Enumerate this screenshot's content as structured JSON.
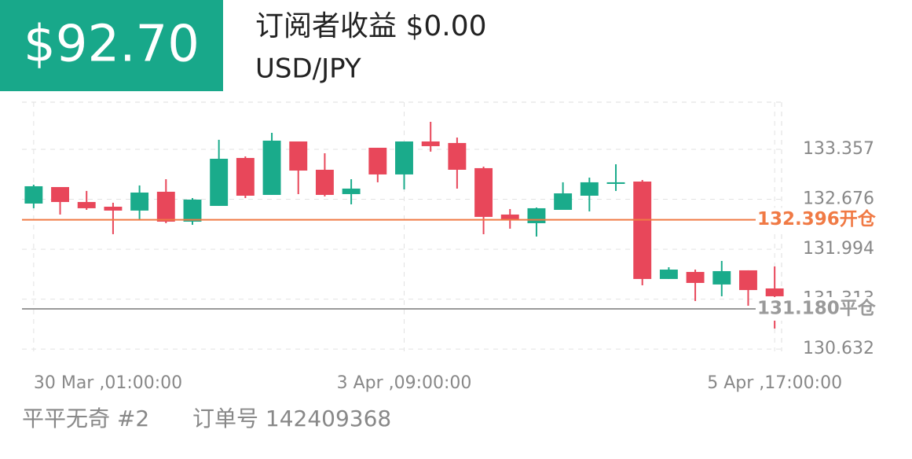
{
  "header": {
    "profit": "$92.70",
    "title": "订阅者收益 $0.00",
    "symbol": "USD/JPY"
  },
  "chart_data": {
    "type": "candlestick",
    "categories": [
      "30 Mar ,01:00:00",
      null,
      null,
      null,
      null,
      null,
      null,
      null,
      null,
      null,
      null,
      null,
      null,
      null,
      "3 Apr ,09:00:00",
      null,
      null,
      null,
      null,
      null,
      null,
      null,
      null,
      null,
      null,
      null,
      null,
      null,
      "5 Apr ,17:00:00"
    ],
    "open": [
      132.617,
      132.842,
      132.638,
      132.574,
      132.521,
      132.778,
      132.37,
      132.585,
      133.239,
      132.735,
      133.464,
      133.078,
      132.746,
      133.378,
      133.014,
      133.464,
      133.443,
      133.1,
      132.467,
      132.349,
      132.531,
      132.724,
      132.885,
      132.917,
      131.588,
      131.684,
      131.513,
      131.706,
      131.459
    ],
    "high": [
      132.874,
      132.842,
      132.789,
      132.628,
      132.864,
      132.949,
      132.692,
      133.486,
      133.26,
      133.582,
      133.464,
      133.303,
      132.949,
      133.378,
      133.464,
      133.732,
      133.518,
      133.121,
      132.542,
      132.563,
      132.907,
      132.971,
      133.153,
      132.939,
      131.748,
      131.716,
      131.834,
      131.706,
      131.759
    ],
    "low": [
      132.553,
      132.467,
      132.531,
      132.199,
      132.403,
      132.349,
      132.327,
      132.585,
      132.692,
      132.735,
      132.746,
      132.714,
      132.606,
      132.907,
      132.81,
      133.325,
      132.821,
      132.199,
      132.274,
      132.167,
      132.531,
      132.51,
      132.789,
      131.502,
      131.588,
      131.287,
      131.352,
      131.223,
      130.912
    ],
    "close": [
      132.853,
      132.638,
      132.553,
      132.521,
      132.767,
      132.37,
      132.671,
      133.228,
      132.724,
      133.475,
      133.067,
      132.735,
      132.821,
      133.014,
      133.464,
      133.4,
      133.078,
      132.435,
      132.392,
      132.553,
      132.756,
      132.907,
      132.907,
      131.588,
      131.716,
      131.534,
      131.695,
      131.437,
      131.352
    ],
    "up_color": "#1aab8b",
    "down_color": "#e8475a",
    "ylim": [
      130.601,
      134.0
    ],
    "yticks": [
      130.632,
      131.313,
      131.994,
      132.676,
      133.357
    ],
    "grid": true,
    "lines": [
      {
        "value": 132.396,
        "label": "132.396开仓",
        "color": "#f07a45"
      },
      {
        "value": 131.18,
        "label": "131.180平仓",
        "color": "#9a9a9a"
      }
    ]
  },
  "footer": {
    "name": "平平无奇 #2",
    "order": "订单号 142409368"
  }
}
